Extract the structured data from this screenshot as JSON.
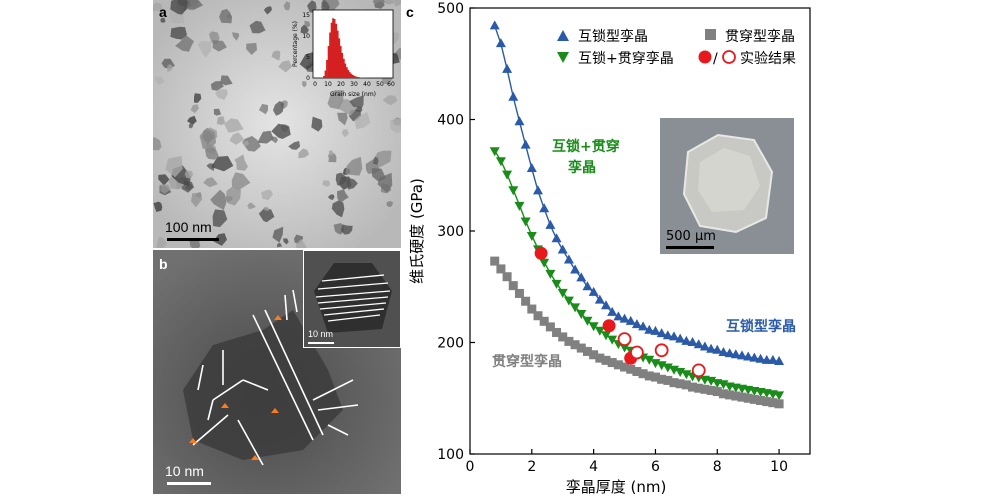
{
  "panels": {
    "a": {
      "letter": "a",
      "scalebar": "100 nm",
      "inset": {
        "ylabel": "Percentage (%)",
        "xlabel": "Grain size (nm)",
        "yticks": [
          "0",
          "5",
          "10",
          "15"
        ],
        "xticks": [
          "0",
          "10",
          "20",
          "30",
          "40",
          "50",
          "60"
        ]
      }
    },
    "b": {
      "letter": "b",
      "scalebar": "10 nm",
      "inset_scalebar": "10 nm"
    },
    "c": {
      "letter": "c",
      "photo_scalebar": "500 μm",
      "annotations": {
        "interlocked_penetrated": [
          "互锁+贯穿",
          "孪晶"
        ],
        "interlocked": "互锁型孪晶",
        "penetrated": "贯穿型孪晶"
      }
    }
  },
  "colors": {
    "interlocked": "#2a5aa8",
    "penetrated": "#808080",
    "mixed": "#1a8c1a",
    "experiment": "#e8191c"
  },
  "chart_data": {
    "type": "scatter",
    "xlabel": "孪晶厚度 (nm)",
    "ylabel": "维氏硬度 (GPa)",
    "xlim": [
      0,
      11
    ],
    "ylim": [
      100,
      500
    ],
    "xticks": [
      0,
      2,
      4,
      6,
      8,
      10
    ],
    "yticks": [
      100,
      200,
      300,
      400,
      500
    ],
    "grid": false,
    "legend_position": "top",
    "legend": [
      {
        "label": "互锁型孪晶",
        "marker": "triangle-up",
        "color": "#2a5aa8"
      },
      {
        "label": "贯穿型孪晶",
        "marker": "square",
        "color": "#808080"
      },
      {
        "label": "互锁+贯穿孪晶",
        "marker": "triangle-down",
        "color": "#1a8c1a"
      },
      {
        "label": "实验结果",
        "marker": "circle-filled-open",
        "color": "#e8191c",
        "separator": "/"
      }
    ],
    "series": [
      {
        "name": "互锁型孪晶",
        "marker": "triangle-up",
        "color": "#2a5aa8",
        "x": [
          0.8,
          1.0,
          1.2,
          1.4,
          1.6,
          1.8,
          2.0,
          2.2,
          2.4,
          2.6,
          2.8,
          3.0,
          3.2,
          3.4,
          3.6,
          3.8,
          4.0,
          4.2,
          4.4,
          4.6,
          4.8,
          5.0,
          5.2,
          5.4,
          5.6,
          5.8,
          6.0,
          6.2,
          6.4,
          6.6,
          6.8,
          7.0,
          7.2,
          7.4,
          7.6,
          7.8,
          8.0,
          8.2,
          8.4,
          8.6,
          8.8,
          9.0,
          9.2,
          9.4,
          9.6,
          9.8,
          10.0
        ],
        "y": [
          484,
          468,
          445,
          420,
          398,
          377,
          356,
          336,
          320,
          305,
          293,
          283,
          274,
          265,
          258,
          250,
          245,
          238,
          233,
          227,
          223,
          221,
          219,
          216,
          214,
          211,
          210,
          208,
          206,
          205,
          203,
          201,
          200,
          198,
          196,
          194,
          193,
          191,
          190,
          189,
          188,
          187,
          186,
          185,
          184,
          184,
          183
        ]
      },
      {
        "name": "互锁+贯穿孪晶",
        "marker": "triangle-down",
        "color": "#1a8c1a",
        "x": [
          0.8,
          1.0,
          1.2,
          1.4,
          1.6,
          1.8,
          2.0,
          2.2,
          2.4,
          2.6,
          2.8,
          3.0,
          3.2,
          3.4,
          3.6,
          3.8,
          4.0,
          4.2,
          4.4,
          4.6,
          4.8,
          5.0,
          5.2,
          5.4,
          5.6,
          5.8,
          6.0,
          6.2,
          6.4,
          6.6,
          6.8,
          7.0,
          7.2,
          7.4,
          7.6,
          7.8,
          8.0,
          8.2,
          8.4,
          8.6,
          8.8,
          9.0,
          9.2,
          9.4,
          9.6,
          9.8,
          10.0
        ],
        "y": [
          372,
          363,
          351,
          337,
          323,
          309,
          296,
          284,
          272,
          262,
          253,
          245,
          238,
          232,
          226,
          220,
          215,
          211,
          207,
          203,
          199,
          196,
          193,
          190,
          187,
          185,
          182,
          180,
          178,
          176,
          174,
          172,
          170,
          169,
          167,
          166,
          164,
          163,
          161,
          160,
          159,
          158,
          157,
          156,
          155,
          154,
          153
        ]
      },
      {
        "name": "贯穿型孪晶",
        "marker": "square",
        "color": "#808080",
        "x": [
          0.8,
          1.0,
          1.2,
          1.4,
          1.6,
          1.8,
          2.0,
          2.2,
          2.4,
          2.6,
          2.8,
          3.0,
          3.2,
          3.4,
          3.6,
          3.8,
          4.0,
          4.2,
          4.4,
          4.6,
          4.8,
          5.0,
          5.2,
          5.4,
          5.6,
          5.8,
          6.0,
          6.2,
          6.4,
          6.6,
          6.8,
          7.0,
          7.2,
          7.4,
          7.6,
          7.8,
          8.0,
          8.2,
          8.4,
          8.6,
          8.8,
          9.0,
          9.2,
          9.4,
          9.6,
          9.8,
          10.0
        ],
        "y": [
          273,
          266,
          259,
          251,
          244,
          237,
          230,
          224,
          219,
          214,
          209,
          205,
          201,
          198,
          195,
          192,
          189,
          186,
          184,
          182,
          180,
          178,
          176,
          174,
          172,
          170,
          169,
          167,
          166,
          164,
          163,
          162,
          160,
          159,
          158,
          157,
          156,
          154,
          153,
          152,
          151,
          150,
          149,
          148,
          147,
          146,
          145
        ]
      },
      {
        "name": "实验结果",
        "marker": "circle-filled",
        "color": "#e8191c",
        "x": [
          2.3,
          4.5,
          5.2
        ],
        "y": [
          280,
          215,
          186
        ]
      },
      {
        "name": "实验结果",
        "marker": "circle-open",
        "color": "#e8191c",
        "x": [
          5.0,
          5.4,
          6.2,
          7.4
        ],
        "y": [
          203,
          191,
          193,
          175
        ]
      }
    ]
  }
}
